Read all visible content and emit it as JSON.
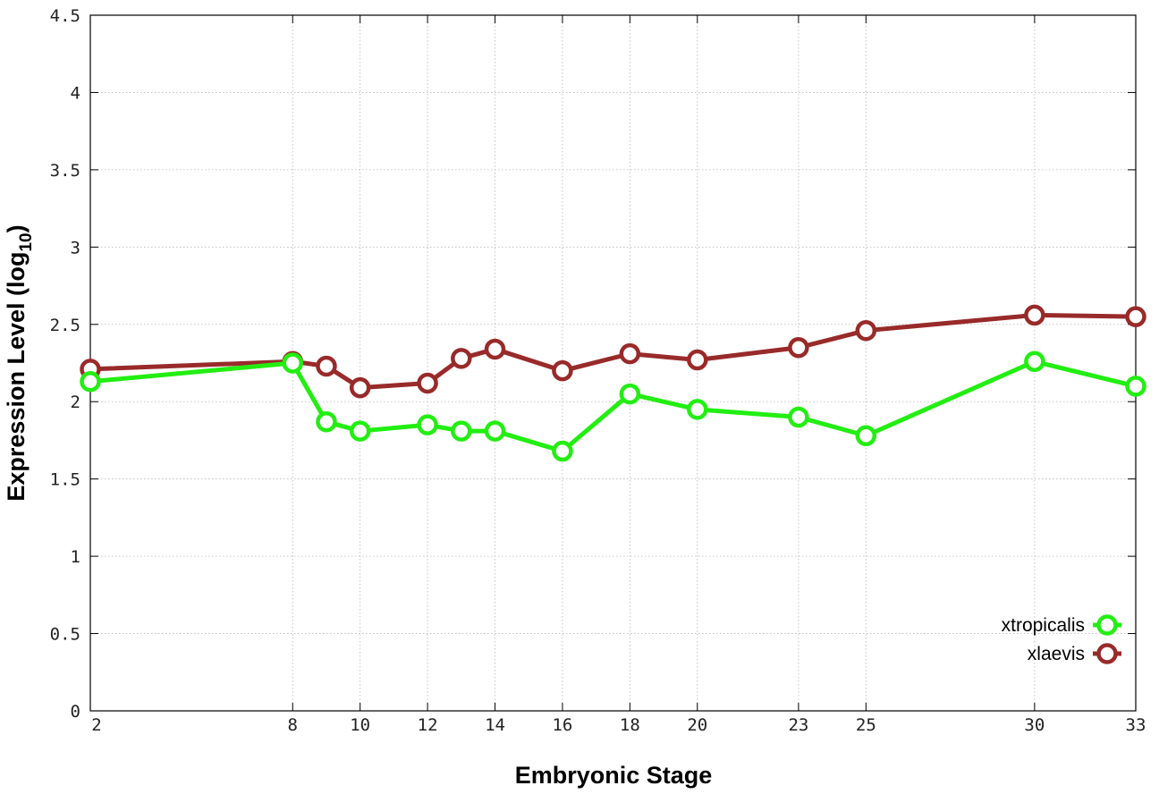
{
  "chart_data": {
    "type": "line",
    "xlabel": "Embryonic Stage",
    "ylabel": {
      "main": "Expression Level (log",
      "sub": "10",
      "close": ")"
    },
    "x_ticks": [
      2,
      8,
      10,
      12,
      14,
      16,
      18,
      20,
      23,
      25,
      30,
      33
    ],
    "x_tick_labels": [
      "2",
      "8",
      "10",
      "12",
      "14",
      "16",
      "18",
      "20",
      "23",
      "25",
      "30",
      "33"
    ],
    "xlim": [
      2,
      33
    ],
    "y_ticks": [
      0,
      0.5,
      1,
      1.5,
      2,
      2.5,
      3,
      3.5,
      4,
      4.5
    ],
    "y_tick_labels": [
      "0",
      "0.5",
      "1",
      "1.5",
      "2",
      "2.5",
      "3",
      "3.5",
      "4",
      "4.5"
    ],
    "ylim": [
      0,
      4.5
    ],
    "grid": true,
    "legend_position": "bottom-right",
    "series": [
      {
        "name": "xtropicalis",
        "color": "#22ee11",
        "marker": "open-circle",
        "x": [
          2,
          8,
          9,
          10,
          12,
          13,
          14,
          16,
          18,
          20,
          23,
          25,
          30,
          33
        ],
        "y": [
          2.13,
          2.25,
          1.87,
          1.81,
          1.85,
          1.81,
          1.81,
          1.68,
          2.05,
          1.95,
          1.9,
          1.78,
          2.26,
          2.1
        ]
      },
      {
        "name": "xlaevis",
        "color": "#992a2a",
        "marker": "open-circle",
        "x": [
          2,
          8,
          9,
          10,
          12,
          13,
          14,
          16,
          18,
          20,
          23,
          25,
          30,
          33
        ],
        "y": [
          2.21,
          2.26,
          2.23,
          2.09,
          2.12,
          2.28,
          2.34,
          2.2,
          2.31,
          2.27,
          2.35,
          2.46,
          2.56,
          2.55
        ]
      }
    ]
  }
}
